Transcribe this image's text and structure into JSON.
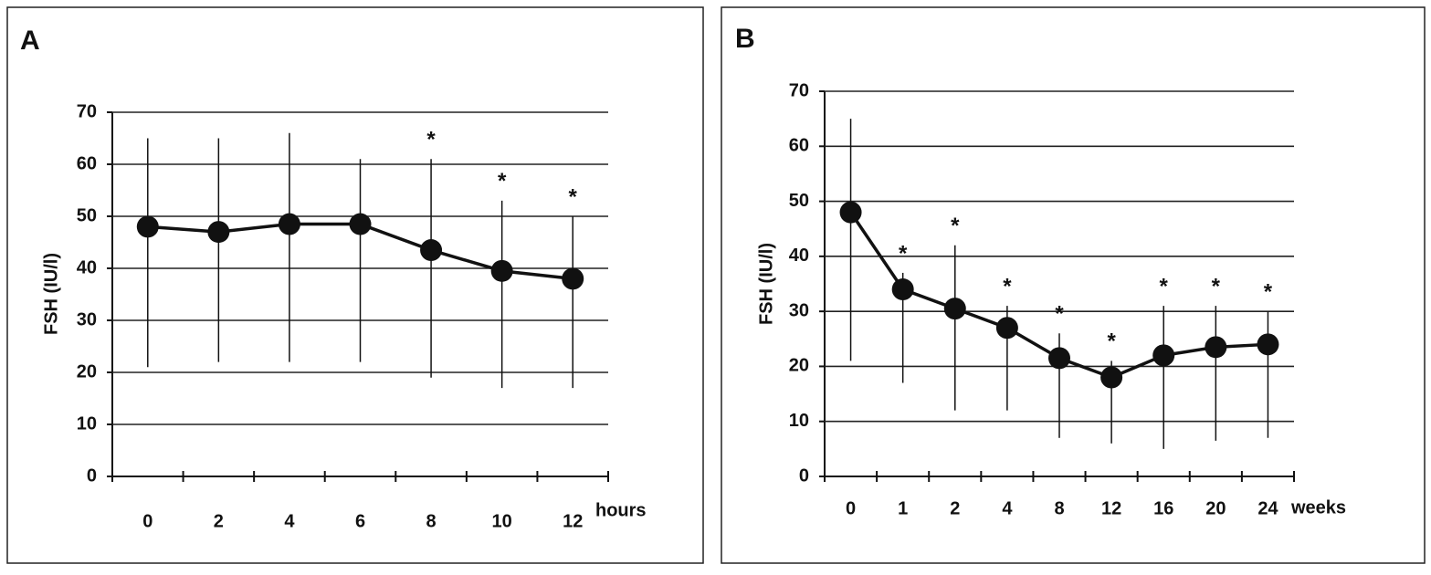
{
  "chart_data": [
    {
      "type": "line",
      "panel_label": "A",
      "ylabel": "FSH (IU/l)",
      "xlabel": "hours",
      "categories": [
        "0",
        "2",
        "4",
        "6",
        "8",
        "10",
        "12"
      ],
      "values": [
        48,
        47,
        48.5,
        48.5,
        43.5,
        39.5,
        38
      ],
      "error_low": [
        21,
        22,
        22,
        22,
        19,
        17,
        17
      ],
      "error_high": [
        65,
        65,
        66,
        61,
        61,
        53,
        50
      ],
      "markers": [
        null,
        null,
        null,
        null,
        "*",
        "*",
        "*"
      ],
      "color": "#111111",
      "ylim": [
        0,
        70
      ],
      "yticks": [
        0,
        10,
        20,
        30,
        40,
        50,
        60,
        70
      ],
      "grid": true
    },
    {
      "type": "line",
      "panel_label": "B",
      "ylabel": "FSH (IU/l)",
      "xlabel": "weeks",
      "categories": [
        "0",
        "1",
        "2",
        "4",
        "8",
        "12",
        "16",
        "20",
        "24"
      ],
      "values": [
        48,
        34,
        30.5,
        27,
        21.5,
        18,
        22,
        23.5,
        24
      ],
      "error_low": [
        21,
        17,
        12,
        12,
        7,
        6,
        5,
        6.5,
        7
      ],
      "error_high": [
        65,
        37,
        42,
        31,
        26,
        21,
        31,
        31,
        30
      ],
      "markers": [
        null,
        "*",
        "*",
        "*",
        "*",
        "*",
        "*",
        "*",
        "*"
      ],
      "color": "#111111",
      "ylim": [
        0,
        70
      ],
      "yticks": [
        0,
        10,
        20,
        30,
        40,
        50,
        60,
        70
      ],
      "grid": true
    }
  ]
}
